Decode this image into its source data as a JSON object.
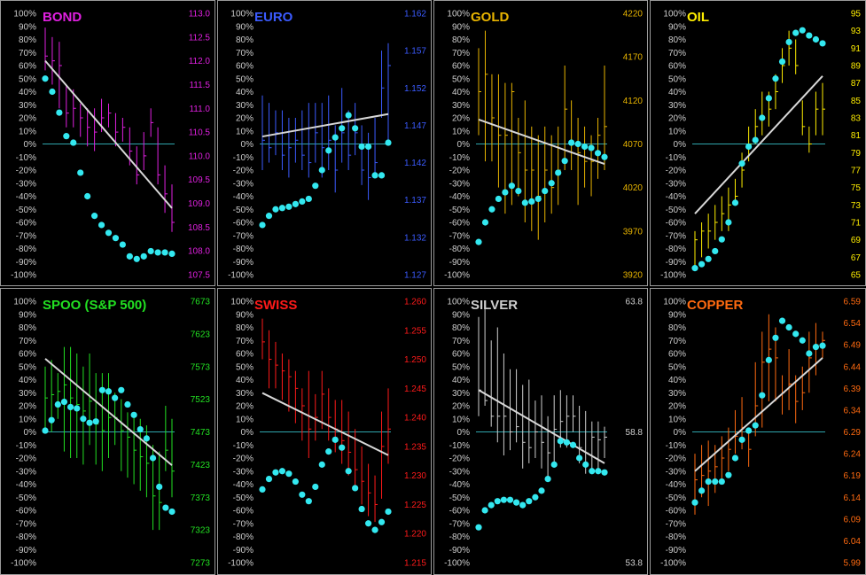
{
  "chart_data": [
    {
      "type": "line",
      "title": "BOND",
      "color": "#e020e0",
      "left_ticks": [
        "100%",
        "90%",
        "80%",
        "70%",
        "60%",
        "50%",
        "40%",
        "30%",
        "20%",
        "10%",
        "0%",
        "-10%",
        "-20%",
        "-30%",
        "-40%",
        "-50%",
        "-60%",
        "-70%",
        "-80%",
        "-90%",
        "-100%"
      ],
      "right_ticks": [
        "113.0",
        "112.5",
        "112.0",
        "111.5",
        "111.0",
        "110.5",
        "110.0",
        "109.5",
        "109.0",
        "108.5",
        "108.0",
        "107.5"
      ],
      "right_range": [
        107.5,
        113.0
      ],
      "oscillator": [
        50,
        40,
        24,
        6,
        1,
        -22,
        -40,
        -55,
        -62,
        -68,
        -72,
        -77,
        -86,
        -88,
        -86,
        -82,
        -83,
        -83,
        -84
      ],
      "bars": [
        [
          111.8,
          112.7,
          112.1
        ],
        [
          111.5,
          112.5,
          112.0
        ],
        [
          111.0,
          112.4,
          111.9
        ],
        [
          110.6,
          111.5,
          110.9
        ],
        [
          110.6,
          111.4,
          111.0
        ],
        [
          110.4,
          111.1,
          110.8
        ],
        [
          110.2,
          111.0,
          110.6
        ],
        [
          110.1,
          111.0,
          110.5
        ],
        [
          110.5,
          111.2,
          110.8
        ],
        [
          110.6,
          111.1,
          110.9
        ],
        [
          110.2,
          110.9,
          110.5
        ],
        [
          110.3,
          110.8,
          110.6
        ],
        [
          109.8,
          110.6,
          110.1
        ],
        [
          109.4,
          110.2,
          109.6
        ],
        [
          109.7,
          110.5,
          110.0
        ],
        [
          110.4,
          111.0,
          110.7
        ],
        [
          109.4,
          110.6,
          109.6
        ],
        [
          108.8,
          109.8,
          109.2
        ],
        [
          108.4,
          109.4,
          108.6
        ]
      ],
      "trend": [
        112.0,
        108.9
      ]
    },
    {
      "type": "line",
      "title": "EURO",
      "color": "#3b5bff",
      "left_ticks": [
        "100%",
        "90%",
        "80%",
        "70%",
        "60%",
        "50%",
        "40%",
        "30%",
        "20%",
        "10%",
        "0%",
        "-10%",
        "-20%",
        "-30%",
        "-40%",
        "-50%",
        "-60%",
        "-70%",
        "-80%",
        "-90%",
        "-100%"
      ],
      "right_ticks": [
        "1.162",
        "1.157",
        "1.152",
        "1.147",
        "1.142",
        "1.137",
        "1.132",
        "1.127"
      ],
      "right_range": [
        1.127,
        1.162
      ],
      "oscillator": [
        -62,
        -55,
        -50,
        -49,
        -48,
        -46,
        -44,
        -42,
        -32,
        -20,
        -5,
        5,
        12,
        22,
        12,
        -2,
        -2,
        -24,
        -24,
        1
      ],
      "bars": [
        [
          1.141,
          1.151,
          1.145
        ],
        [
          1.142,
          1.15,
          1.144
        ],
        [
          1.143,
          1.149,
          1.146
        ],
        [
          1.141,
          1.149,
          1.143
        ],
        [
          1.14,
          1.148,
          1.144
        ],
        [
          1.142,
          1.148,
          1.145
        ],
        [
          1.141,
          1.149,
          1.143
        ],
        [
          1.14,
          1.15,
          1.142
        ],
        [
          1.142,
          1.15,
          1.146
        ],
        [
          1.14,
          1.15,
          1.144
        ],
        [
          1.141,
          1.151,
          1.145
        ],
        [
          1.138,
          1.147,
          1.141
        ],
        [
          1.142,
          1.152,
          1.146
        ],
        [
          1.141,
          1.149,
          1.143
        ],
        [
          1.143,
          1.15,
          1.146
        ],
        [
          1.139,
          1.147,
          1.141
        ],
        [
          1.137,
          1.146,
          1.14
        ],
        [
          1.14,
          1.148,
          1.142
        ],
        [
          1.148,
          1.157,
          1.152
        ],
        [
          1.145,
          1.158,
          1.155
        ]
      ],
      "trend": [
        1.1455,
        1.1485
      ]
    },
    {
      "type": "line",
      "title": "GOLD",
      "color": "#e8b400",
      "left_ticks": [
        "100%",
        "90%",
        "80%",
        "70%",
        "60%",
        "50%",
        "40%",
        "30%",
        "20%",
        "10%",
        "0%",
        "-10%",
        "-20%",
        "-30%",
        "-40%",
        "-50%",
        "-60%",
        "-70%",
        "-80%",
        "-90%",
        "-100%"
      ],
      "right_ticks": [
        "4220",
        "4170",
        "4120",
        "4070",
        "4020",
        "3970",
        "3920"
      ],
      "right_range": [
        3920,
        4220
      ],
      "oscillator": [
        -75,
        -60,
        -50,
        -42,
        -37,
        -32,
        -36,
        -45,
        -44,
        -42,
        -36,
        -30,
        -22,
        -13,
        1,
        0,
        -2,
        -3,
        -7,
        -10
      ],
      "bars": [
        [
          4080,
          4180,
          4130
        ],
        [
          4050,
          4200,
          4150
        ],
        [
          4050,
          4150,
          4100
        ],
        [
          4020,
          4150,
          4080
        ],
        [
          3990,
          4140,
          4080
        ],
        [
          4000,
          4140,
          4130
        ],
        [
          4010,
          4100,
          4060
        ],
        [
          3980,
          4120,
          4040
        ],
        [
          3970,
          4090,
          4040
        ],
        [
          3960,
          4080,
          4010
        ],
        [
          3980,
          4090,
          4040
        ],
        [
          3990,
          4080,
          4020
        ],
        [
          4000,
          4090,
          4040
        ],
        [
          4040,
          4160,
          4110
        ],
        [
          4040,
          4120,
          4070
        ],
        [
          4000,
          4100,
          4060
        ],
        [
          4020,
          4090,
          4050
        ],
        [
          4010,
          4080,
          4050
        ],
        [
          4030,
          4100,
          4080
        ],
        [
          4040,
          4160,
          4090
        ]
      ],
      "trend": [
        4098,
        4047
      ]
    },
    {
      "type": "line",
      "title": "OIL",
      "color": "#ffee00",
      "left_ticks": [
        "100%",
        "90%",
        "80%",
        "70%",
        "60%",
        "50%",
        "40%",
        "30%",
        "20%",
        "10%",
        "0%",
        "-10%",
        "-20%",
        "-30%",
        "-40%",
        "-50%",
        "-60%",
        "-70%",
        "-80%",
        "-90%",
        "-100%"
      ],
      "right_ticks": [
        "95",
        "93",
        "91",
        "89",
        "87",
        "85",
        "83",
        "81",
        "79",
        "77",
        "75",
        "73",
        "71",
        "69",
        "67",
        "65"
      ],
      "right_range": [
        65,
        95
      ],
      "oscillator": [
        -95,
        -92,
        -88,
        -82,
        -73,
        -60,
        -45,
        -15,
        -2,
        3,
        20,
        35,
        50,
        63,
        78,
        85,
        87,
        83,
        80,
        77
      ],
      "bars": [
        [
          66,
          70,
          69
        ],
        [
          67,
          71,
          70
        ],
        [
          68,
          72,
          70
        ],
        [
          69,
          73,
          71
        ],
        [
          70,
          74,
          72
        ],
        [
          70,
          75,
          73
        ],
        [
          73,
          76,
          74
        ],
        [
          75,
          79,
          77
        ],
        [
          78,
          82,
          80
        ],
        [
          80,
          84,
          82
        ],
        [
          81,
          86,
          83
        ],
        [
          82,
          86,
          84
        ],
        [
          84,
          88,
          86
        ],
        [
          87,
          91,
          89
        ],
        [
          89,
          93,
          91
        ],
        [
          88,
          92,
          89
        ],
        [
          81,
          85,
          82
        ],
        [
          79,
          82,
          80
        ],
        [
          81,
          86,
          84
        ],
        [
          81,
          87,
          84
        ]
      ],
      "trend": [
        72.0,
        87.8
      ]
    },
    {
      "type": "line",
      "title": "SPOO (S&P 500)",
      "color": "#22e022",
      "left_ticks": [
        "100%",
        "90%",
        "80%",
        "70%",
        "60%",
        "50%",
        "40%",
        "30%",
        "20%",
        "10%",
        "0%",
        "-10%",
        "-20%",
        "-30%",
        "-40%",
        "-50%",
        "-60%",
        "-70%",
        "-80%",
        "-90%",
        "-100%"
      ],
      "right_ticks": [
        "7673",
        "7623",
        "7573",
        "7523",
        "7473",
        "7423",
        "7373",
        "7323",
        "7273"
      ],
      "right_range": [
        7273,
        7673
      ],
      "oscillator": [
        1,
        9,
        21,
        23,
        19,
        18,
        10,
        7,
        8,
        32,
        31,
        26,
        32,
        21,
        13,
        2,
        -5,
        -20,
        -42,
        -58,
        -61
      ],
      "bars": [
        [
          7473,
          7573,
          7525
        ],
        [
          7473,
          7583,
          7530
        ],
        [
          7493,
          7563,
          7535
        ],
        [
          7443,
          7603,
          7545
        ],
        [
          7433,
          7603,
          7525
        ],
        [
          7433,
          7593,
          7515
        ],
        [
          7423,
          7573,
          7505
        ],
        [
          7453,
          7593,
          7520
        ],
        [
          7423,
          7563,
          7485
        ],
        [
          7413,
          7563,
          7475
        ],
        [
          7433,
          7563,
          7495
        ],
        [
          7453,
          7533,
          7495
        ],
        [
          7413,
          7523,
          7475
        ],
        [
          7403,
          7503,
          7465
        ],
        [
          7393,
          7503,
          7445
        ],
        [
          7383,
          7493,
          7435
        ],
        [
          7373,
          7483,
          7425
        ],
        [
          7323,
          7453,
          7375
        ],
        [
          7323,
          7443,
          7365
        ],
        [
          7413,
          7513,
          7445
        ],
        [
          7373,
          7493,
          7413
        ]
      ],
      "trend": [
        7585,
        7422
      ]
    },
    {
      "type": "line",
      "title": "SWISS",
      "color": "#ff1a1a",
      "left_ticks": [
        "100%",
        "90%",
        "80%",
        "70%",
        "60%",
        "50%",
        "40%",
        "30%",
        "20%",
        "10%",
        "0%",
        "-10%",
        "-20%",
        "-30%",
        "-40%",
        "-50%",
        "-60%",
        "-70%",
        "-80%",
        "-90%",
        "-100%"
      ],
      "right_ticks": [
        "1.260",
        "1.255",
        "1.250",
        "1.245",
        "1.240",
        "1.235",
        "1.230",
        "1.225",
        "1.220",
        "1.215"
      ],
      "right_range": [
        1.215,
        1.26
      ],
      "oscillator": [
        -44,
        -36,
        -31,
        -30,
        -32,
        -38,
        -48,
        -53,
        -42,
        -25,
        -15,
        -6,
        -12,
        -30,
        -43,
        -59,
        -70,
        -75,
        -69,
        -61
      ],
      "bars": [
        [
          1.25,
          1.257,
          1.253
        ],
        [
          1.245,
          1.255,
          1.25
        ],
        [
          1.245,
          1.253,
          1.249
        ],
        [
          1.243,
          1.251,
          1.248
        ],
        [
          1.241,
          1.25,
          1.247
        ],
        [
          1.239,
          1.248,
          1.245
        ],
        [
          1.236,
          1.245,
          1.242
        ],
        [
          1.233,
          1.248,
          1.238
        ],
        [
          1.236,
          1.244,
          1.24
        ],
        [
          1.238,
          1.248,
          1.244
        ],
        [
          1.236,
          1.245,
          1.24
        ],
        [
          1.234,
          1.243,
          1.238
        ],
        [
          1.232,
          1.243,
          1.236
        ],
        [
          1.23,
          1.241,
          1.234
        ],
        [
          1.228,
          1.238,
          1.231
        ],
        [
          1.225,
          1.235,
          1.229
        ],
        [
          1.223,
          1.232,
          1.227
        ],
        [
          1.222,
          1.23,
          1.225
        ],
        [
          1.226,
          1.241,
          1.235
        ],
        [
          1.232,
          1.245,
          1.238
        ]
      ],
      "trend": [
        1.2442,
        1.2335
      ]
    },
    {
      "type": "line",
      "title": "SILVER",
      "color": "#cfcfcf",
      "left_ticks": [
        "100%",
        "90%",
        "80%",
        "70%",
        "60%",
        "50%",
        "40%",
        "30%",
        "20%",
        "10%",
        "0%",
        "-10%",
        "-20%",
        "-30%",
        "-40%",
        "-50%",
        "-60%",
        "-70%",
        "-80%",
        "-90%",
        "-100%"
      ],
      "right_ticks": [
        "63.8",
        "58.8",
        "53.8"
      ],
      "right_range": [
        53.8,
        63.8
      ],
      "oscillator": [
        -73,
        -60,
        -56,
        -53,
        -52,
        -52,
        -54,
        -56,
        -53,
        -50,
        -45,
        -36,
        -25,
        -7,
        -8,
        -10,
        -20,
        -25,
        -30,
        -30,
        -31
      ],
      "bars": [
        [
          59.4,
          63.2,
          60.4
        ],
        [
          59.8,
          63.6,
          60.0
        ],
        [
          59.0,
          62.3,
          59.4
        ],
        [
          58.4,
          62.8,
          59.4
        ],
        [
          57.9,
          61.8,
          59.4
        ],
        [
          58.1,
          61.2,
          58.8
        ],
        [
          58.4,
          61.2,
          59.0
        ],
        [
          57.4,
          60.6,
          58.4
        ],
        [
          57.6,
          60.8,
          58.2
        ],
        [
          57.8,
          60.0,
          58.8
        ],
        [
          57.4,
          60.2,
          58.4
        ],
        [
          57.0,
          59.4,
          58.0
        ],
        [
          57.6,
          60.2,
          58.9
        ],
        [
          58.2,
          60.4,
          59.2
        ],
        [
          58.2,
          60.2,
          59.4
        ],
        [
          58.8,
          60.2,
          59.4
        ],
        [
          57.6,
          59.8,
          58.2
        ],
        [
          57.2,
          59.6,
          58.0
        ],
        [
          57.4,
          59.2,
          58.6
        ],
        [
          57.4,
          59.2,
          58.5
        ],
        [
          57.8,
          59.0,
          58.6
        ]
      ],
      "trend": [
        60.4,
        57.6
      ]
    },
    {
      "type": "line",
      "title": "COPPER",
      "color": "#ff6a10",
      "left_ticks": [
        "100%",
        "90%",
        "80%",
        "70%",
        "60%",
        "50%",
        "40%",
        "30%",
        "20%",
        "10%",
        "0%",
        "-10%",
        "-20%",
        "-30%",
        "-40%",
        "-50%",
        "-60%",
        "-70%",
        "-80%",
        "-90%",
        "-100%"
      ],
      "right_ticks": [
        "6.59",
        "6.54",
        "6.49",
        "6.44",
        "6.39",
        "6.34",
        "6.29",
        "6.24",
        "6.19",
        "6.14",
        "6.09",
        "6.04",
        "5.99"
      ],
      "right_range": [
        5.99,
        6.59
      ],
      "oscillator": [
        -54,
        -45,
        -38,
        -38,
        -38,
        -33,
        -20,
        -6,
        1,
        5,
        28,
        55,
        72,
        85,
        80,
        75,
        70,
        60,
        65,
        66
      ],
      "bars": [
        [
          6.1,
          6.24,
          6.18
        ],
        [
          6.14,
          6.26,
          6.19
        ],
        [
          6.12,
          6.27,
          6.2
        ],
        [
          6.15,
          6.26,
          6.21
        ],
        [
          6.18,
          6.28,
          6.23
        ],
        [
          6.2,
          6.3,
          6.25
        ],
        [
          6.24,
          6.34,
          6.28
        ],
        [
          6.25,
          6.37,
          6.3
        ],
        [
          6.21,
          6.3,
          6.25
        ],
        [
          6.28,
          6.45,
          6.35
        ],
        [
          6.3,
          6.52,
          6.45
        ],
        [
          6.36,
          6.56,
          6.48
        ],
        [
          6.36,
          6.53,
          6.46
        ],
        [
          6.33,
          6.42,
          6.38
        ],
        [
          6.34,
          6.48,
          6.4
        ],
        [
          6.31,
          6.42,
          6.36
        ],
        [
          6.34,
          6.44,
          6.38
        ],
        [
          6.38,
          6.52,
          6.46
        ],
        [
          6.42,
          6.54,
          6.49
        ],
        [
          6.46,
          6.52,
          6.5
        ]
      ],
      "trend": [
        6.2,
        6.46
      ]
    }
  ]
}
